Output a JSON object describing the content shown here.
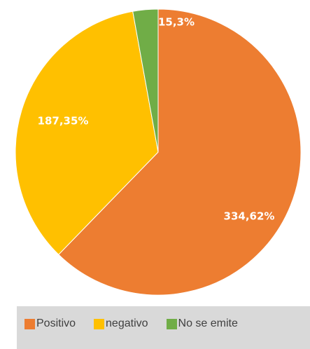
{
  "chart_data": {
    "type": "pie",
    "title": "",
    "slices": [
      {
        "label": "Positivo",
        "value": 334.62,
        "data_label": "334,62%",
        "color": "#ED7D31"
      },
      {
        "label": "negativo",
        "value": 187.35,
        "data_label": "187,35%",
        "color": "#FFC000"
      },
      {
        "label": "No se emite",
        "value": 15.3,
        "data_label": "15,3%",
        "color": "#70AD47"
      }
    ],
    "start_angle_deg": 0,
    "direction": "clockwise",
    "legend_position": "bottom"
  }
}
